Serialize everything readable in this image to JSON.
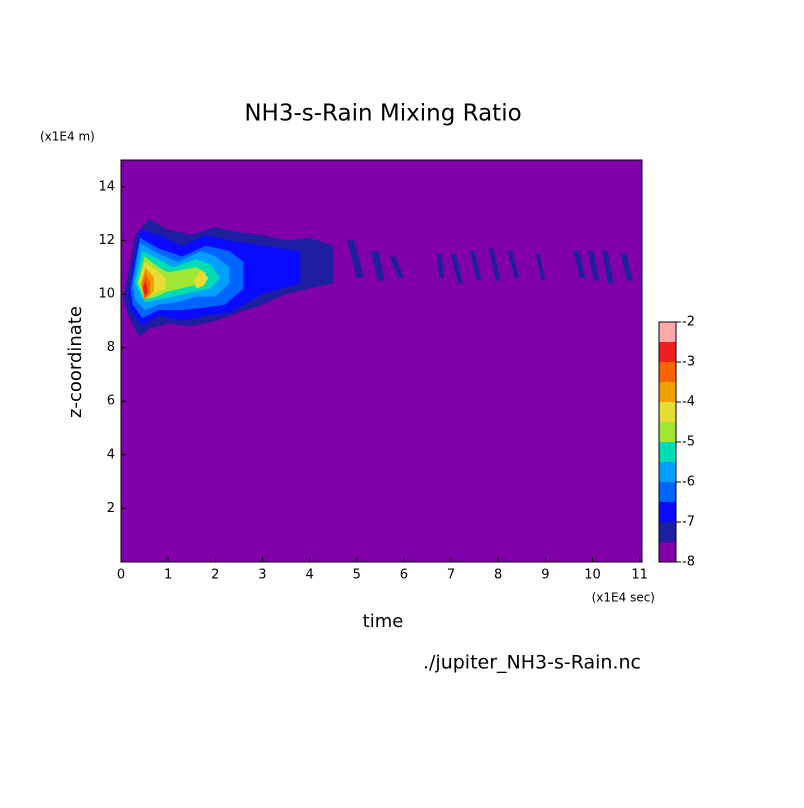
{
  "chart_data": {
    "type": "contour",
    "title": "NH3-s-Rain Mixing Ratio",
    "x_label": "time",
    "y_label": "z-coordinate",
    "x_unit": "(x1E4 sec)",
    "y_unit": "(x1E4 m)",
    "footnote": "./jupiter_NH3-s-Rain.nc",
    "xlim": [
      0,
      11.05
    ],
    "ylim": [
      0,
      15
    ],
    "xticks": [
      0,
      1,
      2,
      3,
      4,
      5,
      6,
      7,
      8,
      9,
      10,
      11
    ],
    "yticks": [
      2,
      4,
      6,
      8,
      10,
      12,
      14
    ],
    "levels": [
      -8,
      -7.5,
      -7,
      -6.5,
      -6,
      -5.5,
      -5,
      -4.5,
      -4,
      -3.5,
      -3,
      -2.5,
      -2
    ],
    "colors": [
      "#8200aa",
      "#1e1ea0",
      "#0a0aff",
      "#0064ff",
      "#00a0ff",
      "#00dcb4",
      "#a0e632",
      "#e6dc32",
      "#f0a000",
      "#fa6400",
      "#f01e1e",
      "#ffaaaa"
    ],
    "cbar_ticks": [
      -8,
      -7,
      -6,
      -5,
      -4,
      -3,
      -2
    ],
    "regions": [
      {
        "level": -7.5,
        "x": [
          0.05,
          0.3,
          0.6,
          1.0,
          1.5,
          2.0,
          2.5,
          3.0,
          3.5,
          4.0,
          4.5,
          4.5,
          4.0,
          3.5,
          3.0,
          2.5,
          2.0,
          1.5,
          1.0,
          0.6,
          0.4,
          0.2
        ],
        "y": [
          9.8,
          12.2,
          12.8,
          12.4,
          12.2,
          12.5,
          12.3,
          12.2,
          12.0,
          12.1,
          11.8,
          10.4,
          10.2,
          10.0,
          9.6,
          9.3,
          9.0,
          8.8,
          8.9,
          8.7,
          8.4,
          9.0
        ]
      },
      {
        "level": -7.5,
        "x": [
          4.8,
          4.95,
          5.15,
          5.0
        ],
        "y": [
          12.0,
          12.0,
          10.6,
          10.6
        ]
      },
      {
        "level": -7.5,
        "x": [
          5.3,
          5.45,
          5.6,
          5.45
        ],
        "y": [
          11.6,
          11.6,
          10.5,
          10.5
        ]
      },
      {
        "level": -7.5,
        "x": [
          5.7,
          5.82,
          6.0,
          5.88
        ],
        "y": [
          11.4,
          11.4,
          10.6,
          10.6
        ]
      },
      {
        "level": -7.5,
        "x": [
          6.7,
          6.8,
          6.85,
          6.75
        ],
        "y": [
          11.5,
          11.5,
          10.6,
          10.6
        ]
      },
      {
        "level": -7.5,
        "x": [
          7.0,
          7.1,
          7.25,
          7.15
        ],
        "y": [
          11.5,
          11.5,
          10.4,
          10.4
        ]
      },
      {
        "level": -7.5,
        "x": [
          7.4,
          7.5,
          7.65,
          7.55
        ],
        "y": [
          11.6,
          11.6,
          10.5,
          10.5
        ]
      },
      {
        "level": -7.5,
        "x": [
          7.8,
          7.9,
          8.05,
          7.95
        ],
        "y": [
          11.7,
          11.7,
          10.5,
          10.5
        ]
      },
      {
        "level": -7.5,
        "x": [
          8.2,
          8.3,
          8.45,
          8.35
        ],
        "y": [
          11.6,
          11.6,
          10.6,
          10.6
        ]
      },
      {
        "level": -7.5,
        "x": [
          8.8,
          8.88,
          9.0,
          8.92
        ],
        "y": [
          11.5,
          11.5,
          10.5,
          10.5
        ]
      },
      {
        "level": -7.5,
        "x": [
          9.6,
          9.72,
          9.85,
          9.73
        ],
        "y": [
          11.6,
          11.6,
          10.6,
          10.6
        ]
      },
      {
        "level": -7.5,
        "x": [
          9.9,
          10.02,
          10.15,
          10.03
        ],
        "y": [
          11.6,
          11.6,
          10.5,
          10.5
        ]
      },
      {
        "level": -7.5,
        "x": [
          10.2,
          10.32,
          10.45,
          10.33
        ],
        "y": [
          11.6,
          11.6,
          10.4,
          10.4
        ]
      },
      {
        "level": -7.5,
        "x": [
          10.6,
          10.72,
          10.85,
          10.73
        ],
        "y": [
          11.5,
          11.5,
          10.5,
          10.5
        ]
      },
      {
        "level": -7,
        "x": [
          0.15,
          0.4,
          0.8,
          1.3,
          1.8,
          2.3,
          3.0,
          3.8,
          3.8,
          3.0,
          2.3,
          1.8,
          1.3,
          0.8,
          0.45,
          0.2
        ],
        "y": [
          10.0,
          12.4,
          12.2,
          11.8,
          12.2,
          12.0,
          11.8,
          11.6,
          10.4,
          10.0,
          9.3,
          9.2,
          9.0,
          9.2,
          8.8,
          9.4
        ]
      },
      {
        "level": -6.5,
        "x": [
          0.2,
          0.4,
          0.8,
          1.3,
          1.8,
          2.3,
          2.6,
          2.6,
          2.2,
          1.8,
          1.3,
          0.8,
          0.45,
          0.25
        ],
        "y": [
          10.2,
          12.1,
          11.7,
          11.4,
          11.8,
          11.6,
          11.2,
          10.2,
          9.6,
          9.5,
          9.4,
          9.4,
          9.1,
          9.6
        ]
      },
      {
        "level": -6,
        "x": [
          0.25,
          0.4,
          0.8,
          1.2,
          1.7,
          2.0,
          2.3,
          2.3,
          2.0,
          1.6,
          1.2,
          0.8,
          0.5,
          0.3
        ],
        "y": [
          10.3,
          11.9,
          11.5,
          11.2,
          11.6,
          11.4,
          11.0,
          10.4,
          9.9,
          9.9,
          9.7,
          9.6,
          9.4,
          9.8
        ]
      },
      {
        "level": -5.5,
        "x": [
          0.3,
          0.45,
          0.8,
          1.1,
          1.6,
          1.9,
          2.1,
          1.9,
          1.6,
          1.1,
          0.8,
          0.5
        ],
        "y": [
          10.4,
          11.6,
          11.3,
          11.0,
          11.3,
          11.1,
          10.6,
          10.2,
          10.1,
          9.9,
          9.8,
          9.7
        ]
      },
      {
        "level": -5,
        "x": [
          0.35,
          0.5,
          0.8,
          1.0,
          1.6,
          1.8,
          1.8,
          1.5,
          1.0,
          0.75,
          0.5
        ],
        "y": [
          10.4,
          11.4,
          11.0,
          10.8,
          11.0,
          10.8,
          10.4,
          10.3,
          10.1,
          9.9,
          9.8
        ]
      },
      {
        "level": -4.5,
        "x": [
          0.4,
          0.5,
          0.75,
          0.95,
          0.95,
          0.7,
          0.5
        ],
        "y": [
          10.5,
          11.2,
          10.9,
          10.6,
          10.2,
          10.0,
          9.8
        ]
      },
      {
        "level": -4.5,
        "x": [
          1.55,
          1.7,
          1.85,
          1.75,
          1.6
        ],
        "y": [
          10.5,
          10.9,
          10.6,
          10.3,
          10.2
        ]
      },
      {
        "level": -4,
        "x": [
          0.42,
          0.52,
          0.7,
          0.7,
          0.52
        ],
        "y": [
          10.4,
          11.0,
          10.6,
          10.1,
          9.8
        ]
      },
      {
        "level": -3.5,
        "x": [
          0.44,
          0.52,
          0.62,
          0.6,
          0.5
        ],
        "y": [
          10.3,
          10.8,
          10.4,
          10.0,
          9.8
        ]
      },
      {
        "level": -3,
        "x": [
          0.46,
          0.52,
          0.57,
          0.52
        ],
        "y": [
          10.2,
          10.5,
          10.1,
          9.9
        ]
      }
    ]
  }
}
